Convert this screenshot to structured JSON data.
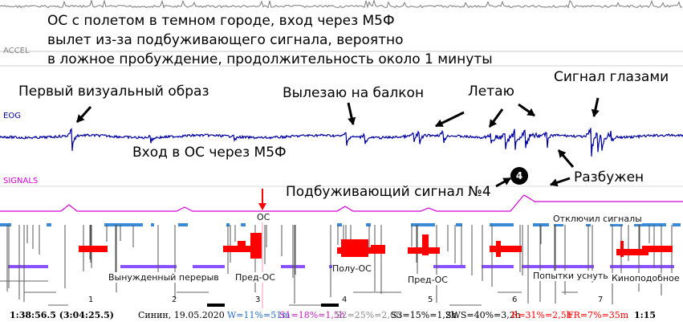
{
  "title_lines": [
    "ОС с полетом в темном городе, вход через М5Ф",
    "вылет из-за подбуживающего сигнала, вероятно",
    "в ложное пробуждение, продолжительность около 1 минуты"
  ],
  "channels": {
    "accel": "ACCEL",
    "eog": "EOG",
    "signals": "SIGNALS"
  },
  "annotations": {
    "first_image": "Первый визуальный образ",
    "balcony": "Вылезаю на балкон",
    "flying": "Летаю",
    "eye_signal": "Сигнал глазами",
    "entry": "Вход в ОС через М5Ф",
    "woken": "Разбужен",
    "wake_signal": "Подбуживающий сигнал №4",
    "wake_signal_badge": "4"
  },
  "hypnogram": {
    "os_marker": "ОС",
    "signals_off": "Отключил сигналы",
    "forced_break": "Вынужденный перерыв",
    "pre_os_1": "Пред-ОС",
    "half_os": "Полу-ОС",
    "pre_os_2": "Пред-ОС",
    "sleep_attempts": "Попытки уснуть",
    "cinema_like": "Киноподобное",
    "hour_ticks": [
      "1",
      "2",
      "3",
      "4",
      "5",
      "6",
      "7"
    ]
  },
  "status": {
    "time": "1:38:56.5 (3:04:25.5)",
    "date": "Синин, 19.05.2020",
    "w": "W=11%=51m",
    "s1": "S1=18%=1,5h",
    "s2": "S2=25%=2,0h",
    "s3": "S3=15%=1,2h",
    "sws": "SWS=40%=3,2h",
    "r": "R=31%=2,5h",
    "fr": "FR=7%=35m",
    "zoom": "1:15"
  },
  "colors": {
    "eog": "#0000a0",
    "signals": "#d400d4",
    "rem": "#ff0000",
    "light": "#8a52ff",
    "wake": "#3a8ad8",
    "arrow_red": "#ff0000",
    "w_text": "#2a70c8",
    "s1_text": "#c020c0",
    "s2_text": "#888888",
    "r_text": "#ff0000"
  }
}
